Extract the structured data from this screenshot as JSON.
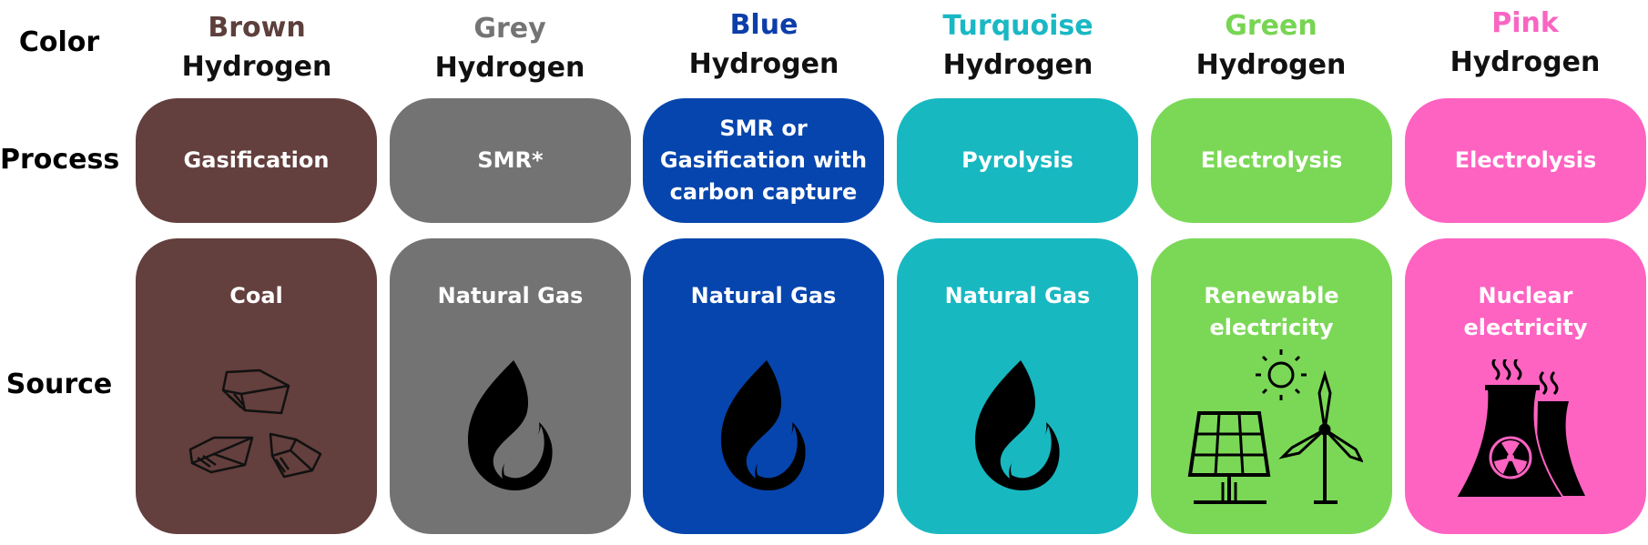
{
  "row_labels": {
    "color": "Color",
    "process": "Process",
    "source": "Source"
  },
  "columns": [
    {
      "color_name": "Brown",
      "hydrogen": "Hydrogen",
      "color_hex": "#5d3f3c",
      "card_hex": "#633f3d",
      "process": "Gasification",
      "source": "Coal",
      "icon": "coal-icon"
    },
    {
      "color_name": "Grey",
      "hydrogen": "Hydrogen",
      "color_hex": "#747474",
      "card_hex": "#737373",
      "process": "SMR*",
      "source": "Natural Gas",
      "icon": "flame-icon"
    },
    {
      "color_name": "Blue",
      "hydrogen": "Hydrogen",
      "color_hex": "#0c3ea9",
      "card_hex": "#0645ad",
      "process": "SMR or Gasification with carbon capture",
      "source": "Natural Gas",
      "icon": "flame-icon"
    },
    {
      "color_name": "Turquoise",
      "hydrogen": "Hydrogen",
      "color_hex": "#19b8c4",
      "card_hex": "#18b8c1",
      "process": "Pyrolysis",
      "source": "Natural Gas",
      "icon": "flame-icon"
    },
    {
      "color_name": "Green",
      "hydrogen": "Hydrogen",
      "color_hex": "#77d552",
      "card_hex": "#7bd857",
      "process": "Electrolysis",
      "source": "Renewable electricity",
      "icon": "solar-wind-icon"
    },
    {
      "color_name": "Pink",
      "hydrogen": "Hydrogen",
      "color_hex": "#f865c2",
      "card_hex": "#fe63c2",
      "process": "Electrolysis",
      "source": "Nuclear electricity",
      "icon": "nuclear-plant-icon"
    }
  ]
}
